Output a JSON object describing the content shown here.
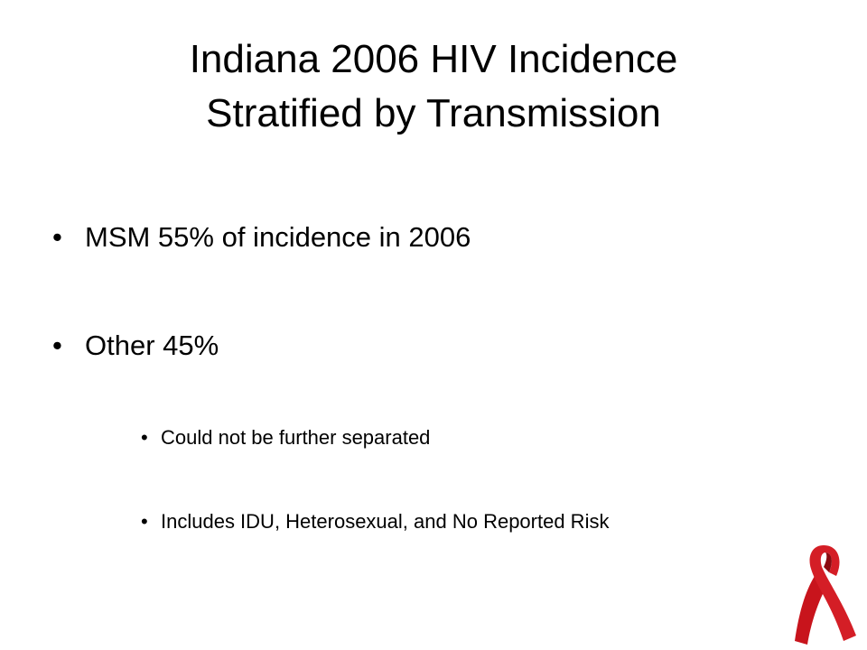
{
  "slide": {
    "title": [
      "Indiana 2006 HIV Incidence",
      "Stratified by Transmission"
    ],
    "bullets": [
      {
        "text": "MSM 55% of incidence in 2006",
        "sub_bullets": []
      },
      {
        "text": "Other 45%",
        "sub_bullets": [
          "Could not be further separated",
          "Includes IDU, Heterosexual, and No Reported Risk"
        ]
      }
    ]
  }
}
